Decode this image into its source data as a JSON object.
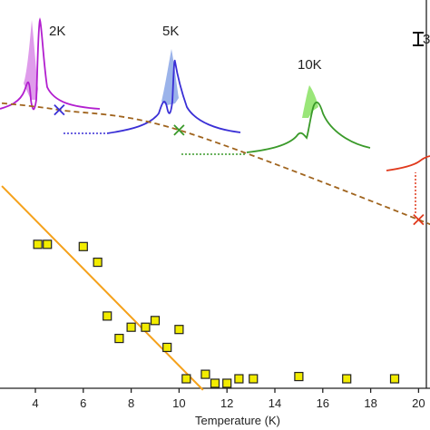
{
  "chart_data": {
    "type": "scatter",
    "xlabel": "Temperature (K)",
    "xlim": [
      2.6,
      21
    ],
    "x_ticks": [
      4,
      6,
      8,
      10,
      12,
      14,
      16,
      18,
      20
    ],
    "tick_labels": [
      "4",
      "6",
      "8",
      "10",
      "12",
      "14",
      "16",
      "18",
      "20"
    ],
    "grid": false,
    "series": [
      {
        "kind": "points",
        "marker": "square",
        "color": "#f2ec00",
        "x": [
          4.1,
          4.5,
          6.0,
          6.6,
          7.0,
          7.5,
          8.0,
          8.6,
          9.0,
          9.5,
          10.0,
          10.3,
          11.1,
          11.5,
          12.0,
          12.5,
          13.1,
          15.0,
          17.0,
          19.0
        ],
        "y": [
          0.61,
          0.61,
          0.6,
          0.53,
          0.29,
          0.19,
          0.24,
          0.24,
          0.27,
          0.15,
          0.23,
          0.01,
          0.03,
          -0.01,
          -0.01,
          0.01,
          0.01,
          0.02,
          0.01,
          0.01
        ]
      },
      {
        "kind": "fit-line",
        "color": "#f5a11a",
        "x": [
          2.6,
          11.0
        ],
        "y": [
          0.87,
          -0.04
        ]
      },
      {
        "kind": "dashed-curve",
        "color": "#a0641e",
        "x": [
          2.6,
          5.0,
          10.0,
          20.0,
          21.0
        ],
        "y": [
          1.24,
          1.21,
          1.12,
          0.72,
          0.66
        ]
      },
      {
        "kind": "cross-markers",
        "x": [
          5.0,
          10.0,
          20.0
        ],
        "y": [
          1.21,
          1.12,
          0.72
        ],
        "colors": [
          "#3a2fd6",
          "#3a9a2a",
          "#e0391c"
        ]
      }
    ],
    "insets": [
      {
        "label": "2K",
        "color": "#b21fcf",
        "fill": "#d98be8"
      },
      {
        "label": "5K",
        "color": "#3a2fd6",
        "fill": "#8aa6e6"
      },
      {
        "label": "10K",
        "color": "#3a9a2a",
        "fill": "#8fe36a"
      },
      {
        "label": "",
        "color": "#e0391c",
        "fill": "#f5b39a"
      }
    ],
    "scale_bar_label": "3"
  }
}
